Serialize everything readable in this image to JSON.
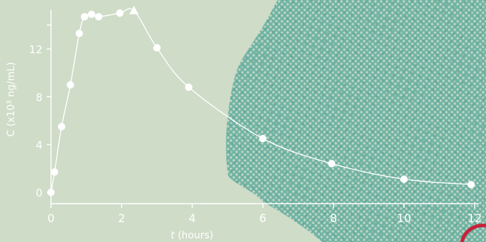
{
  "colors": {
    "background": "#cfdcc8",
    "blob": "#6fb3a4",
    "foreground": "#ffffff",
    "accent_ring": "#c8213a"
  },
  "chart_data": {
    "type": "line",
    "ylabel": "C (x10³ ng/mL)",
    "xlabel_var": "t",
    "xlabel_unit": " (hours)",
    "xlim": [
      0,
      12
    ],
    "ylim": [
      0,
      15
    ],
    "xticks": [
      0,
      2,
      4,
      6,
      8,
      10,
      12
    ],
    "yticks": [
      0,
      4,
      8,
      12
    ],
    "grid": false,
    "series": [
      {
        "marker": "circle",
        "x": [
          0.0,
          0.1,
          0.3,
          0.55,
          0.8,
          0.95,
          1.15,
          1.35,
          1.95,
          3.0,
          3.9,
          6.0,
          7.95,
          10.0,
          11.9
        ],
        "y": [
          0.0,
          1.7,
          5.5,
          9.0,
          13.3,
          14.7,
          14.9,
          14.7,
          15.0,
          12.1,
          8.8,
          4.5,
          2.4,
          1.1,
          0.65
        ]
      },
      {
        "marker": "triangle",
        "x": [
          2.35
        ],
        "y": [
          15.2
        ]
      }
    ]
  }
}
